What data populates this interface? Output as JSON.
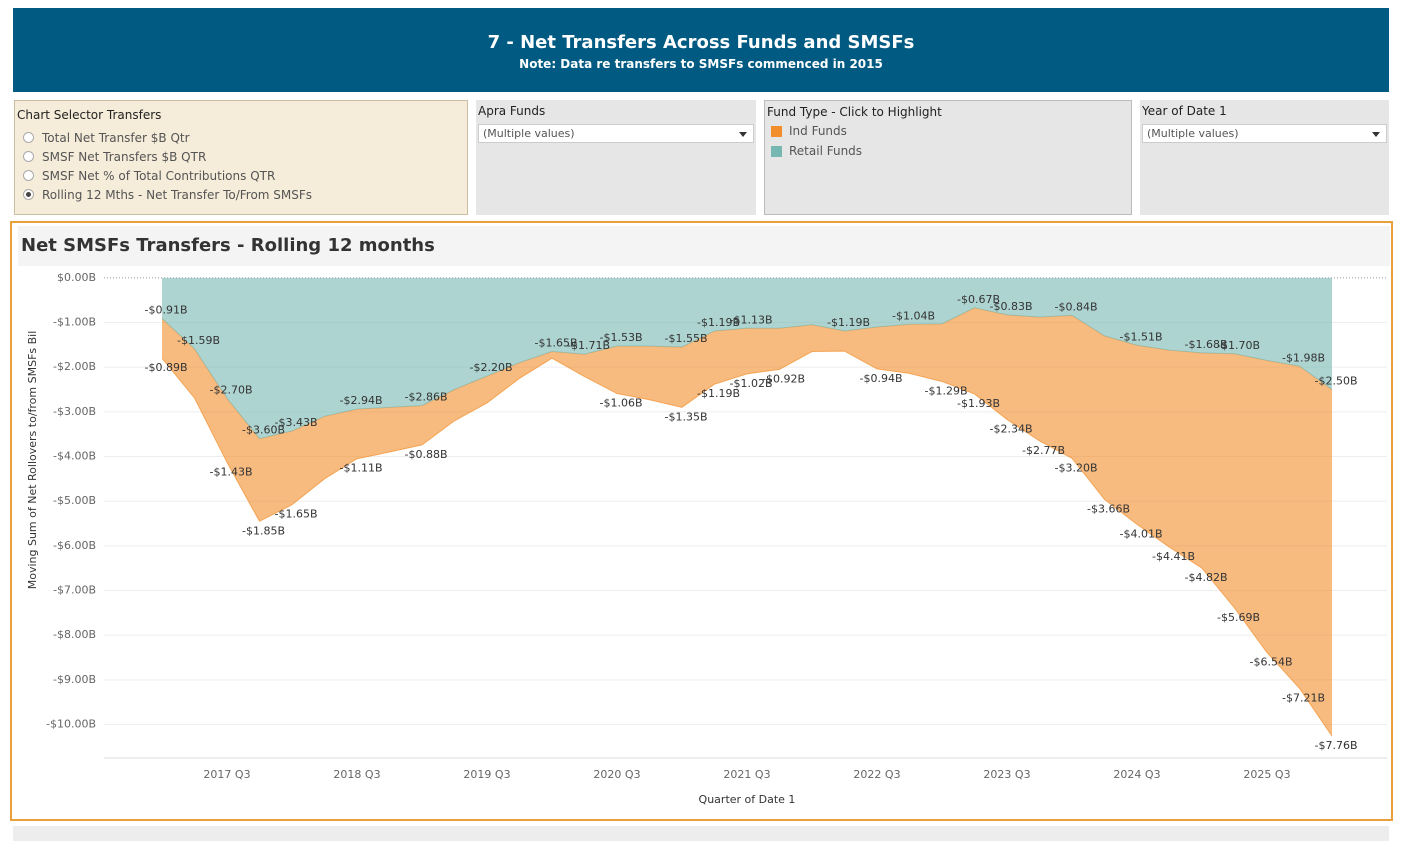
{
  "header": {
    "title": "7 - Net Transfers Across Funds and SMSFs",
    "subtitle": "Note: Data re transfers to SMSFs commenced in 2015"
  },
  "filters": {
    "chart_selector": {
      "title": "Chart Selector Transfers",
      "options": [
        "Total Net Transfer $B Qtr",
        "SMSF Net Transfers $B QTR",
        "SMSF Net % of Total Contributions QTR",
        "Rolling 12 Mths - Net Transfer To/From SMSFs"
      ],
      "selected": 3
    },
    "apra_funds": {
      "title": "Apra Funds",
      "value": "(Multiple values)"
    },
    "fund_type": {
      "title": "Fund Type - Click to Highlight"
    },
    "year": {
      "title": "Year of Date 1",
      "value": "(Multiple values)"
    }
  },
  "chart_data": {
    "type": "stacked-area",
    "title": "Net SMSFs Transfers - Rolling 12 months",
    "y_label": "Moving Sum of Net Rollovers to/from SMSFs Bil",
    "x_label": "Quarter of Date 1",
    "categories": [
      null,
      null,
      "2017 Q3",
      null,
      null,
      null,
      "2018 Q3",
      null,
      null,
      null,
      "2019 Q3",
      null,
      null,
      null,
      "2020 Q3",
      null,
      null,
      null,
      "2021 Q3",
      null,
      null,
      null,
      "2022 Q3",
      null,
      null,
      null,
      "2023 Q3",
      null,
      null,
      null,
      "2024 Q3",
      null,
      null,
      null,
      "2025 Q3",
      null,
      null
    ],
    "series": [
      {
        "name": "Ind Funds",
        "color": "#f28e2b",
        "values": [
          -0.89,
          -1.1,
          -1.43,
          -1.85,
          -1.65,
          -1.4,
          -1.11,
          -1.0,
          -0.88,
          -0.7,
          -0.6,
          -0.35,
          -0.15,
          -0.5,
          -1.06,
          -1.2,
          -1.35,
          -1.19,
          -1.02,
          -0.92,
          -0.6,
          -0.45,
          -0.94,
          -1.1,
          -1.29,
          -1.93,
          -2.34,
          -2.77,
          -3.2,
          -3.66,
          -4.01,
          -4.41,
          -4.82,
          -5.69,
          -6.54,
          -7.21,
          -7.76
        ],
        "value_labels": [
          "-$0.89B",
          null,
          "-$1.43B",
          "-$1.85B",
          "-$1.65B",
          null,
          "-$1.11B",
          null,
          "-$0.88B",
          null,
          null,
          null,
          null,
          null,
          "-$1.06B",
          null,
          "-$1.35B",
          "-$1.19B",
          "-$1.02B",
          "-$0.92B",
          null,
          null,
          "-$0.94B",
          null,
          "-$1.29B",
          "-$1.93B",
          "-$2.34B",
          "-$2.77B",
          "-$3.20B",
          "-$3.66B",
          "-$4.01B",
          "-$4.41B",
          "-$4.82B",
          "-$5.69B",
          "-$6.54B",
          "-$7.21B",
          "-$7.76B"
        ]
      },
      {
        "name": "Retail Funds",
        "color": "#76b7b2",
        "values": [
          -0.91,
          -1.59,
          -2.7,
          -3.6,
          -3.43,
          -3.1,
          -2.94,
          -2.9,
          -2.86,
          -2.5,
          -2.2,
          -1.9,
          -1.65,
          -1.71,
          -1.53,
          -1.53,
          -1.55,
          -1.19,
          -1.13,
          -1.13,
          -1.05,
          -1.19,
          -1.1,
          -1.04,
          -1.03,
          -0.67,
          -0.83,
          -0.88,
          -0.84,
          -1.3,
          -1.51,
          -1.62,
          -1.68,
          -1.7,
          -1.85,
          -1.98,
          -2.5
        ],
        "value_labels": [
          "-$0.91B",
          "-$1.59B",
          "-$2.70B",
          "-$3.60B",
          "-$3.43B",
          null,
          "-$2.94B",
          null,
          "-$2.86B",
          null,
          "-$2.20B",
          null,
          "-$1.65B",
          "-$1.71B",
          "-$1.53B",
          null,
          "-$1.55B",
          "-$1.19B",
          "-$1.13B",
          null,
          null,
          "-$1.19B",
          null,
          "-$1.04B",
          null,
          "-$0.67B",
          "-$0.83B",
          null,
          "-$0.84B",
          null,
          "-$1.51B",
          null,
          "-$1.68B",
          "-$1.70B",
          null,
          "-$1.98B",
          "-$2.50B"
        ]
      }
    ],
    "ylim": [
      -10.75,
      0.22
    ],
    "yticks": [
      {
        "value": 0,
        "label": "$0.00B"
      },
      {
        "value": -1,
        "label": "-$1.00B"
      },
      {
        "value": -2,
        "label": "-$2.00B"
      },
      {
        "value": -3,
        "label": "-$3.00B"
      },
      {
        "value": -4,
        "label": "-$4.00B"
      },
      {
        "value": -5,
        "label": "-$5.00B"
      },
      {
        "value": -6,
        "label": "-$6.00B"
      },
      {
        "value": -7,
        "label": "-$7.00B"
      },
      {
        "value": -8,
        "label": "-$8.00B"
      },
      {
        "value": -9,
        "label": "-$9.00B"
      },
      {
        "value": -10,
        "label": "-$10.00B"
      }
    ],
    "grid": true
  }
}
